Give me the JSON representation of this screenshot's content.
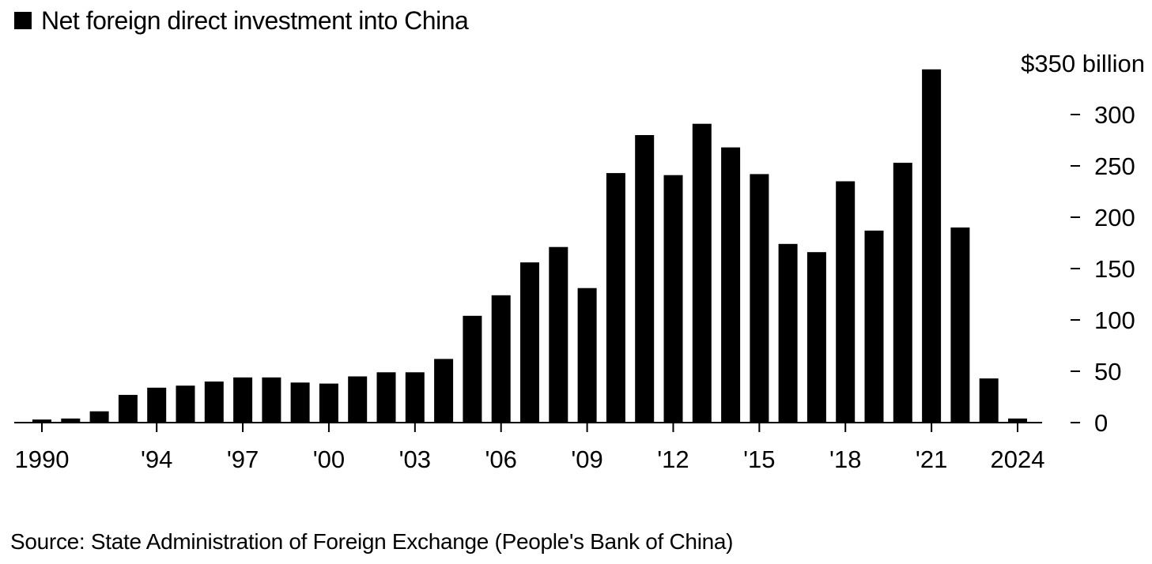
{
  "chart_data": {
    "type": "bar",
    "legend": [
      {
        "label": "Net foreign direct investment into China",
        "color": "#000000"
      }
    ],
    "series": [
      {
        "name": "Net foreign direct investment into China",
        "color": "#000000",
        "x": [
          1990,
          1991,
          1992,
          1993,
          1994,
          1995,
          1996,
          1997,
          1998,
          1999,
          2000,
          2001,
          2002,
          2003,
          2004,
          2005,
          2006,
          2007,
          2008,
          2009,
          2010,
          2011,
          2012,
          2013,
          2014,
          2015,
          2016,
          2017,
          2018,
          2019,
          2020,
          2021,
          2022,
          2023,
          2024
        ],
        "values": [
          3,
          4,
          11,
          27,
          34,
          36,
          40,
          44,
          44,
          39,
          38,
          45,
          49,
          49,
          62,
          104,
          124,
          156,
          171,
          131,
          243,
          280,
          241,
          291,
          268,
          242,
          174,
          166,
          235,
          187,
          253,
          344,
          190,
          43,
          4
        ]
      }
    ],
    "y_axis": {
      "unit_label": "$350 billion",
      "range": [
        0,
        350
      ],
      "ticks": [
        0,
        50,
        100,
        150,
        200,
        250,
        300
      ],
      "tick_labels": [
        "0",
        "50",
        "100",
        "150",
        "200",
        "250",
        "300"
      ],
      "side": "right"
    },
    "x_axis": {
      "ticks": [
        1990,
        1994,
        1997,
        2000,
        2003,
        2006,
        2009,
        2012,
        2015,
        2018,
        2021,
        2024
      ],
      "tick_labels": [
        "1990",
        "'94",
        "'97",
        "'00",
        "'03",
        "'06",
        "'09",
        "'12",
        "'15",
        "'18",
        "'21",
        "2024"
      ]
    },
    "grid": false,
    "legend_position": "top-left"
  },
  "source": "Source: State Administration of Foreign Exchange (People's Bank of China)"
}
